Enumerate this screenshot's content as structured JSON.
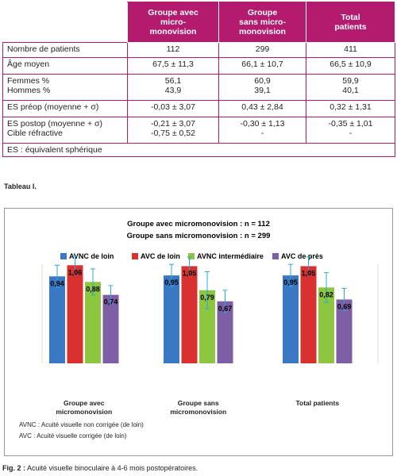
{
  "table": {
    "header": [
      "Groupe avec\nmicro-\nmonovision",
      "Groupe\nsans micro-\nmonovision",
      "Total\npatients"
    ],
    "rows": [
      [
        "Nombre de patients",
        "112",
        "299",
        "411"
      ],
      [
        "Âge moyen",
        "67,5 ± 11,3",
        "66,1 ± 10,7",
        "66,5 ± 10,9"
      ],
      [
        "Femmes %\nHommes %",
        "56,1\n43,9",
        "60,9\n39,1",
        "59,9\n40,1"
      ],
      [
        "ES préop (moyenne + σ)",
        "-0,03 ± 3,07",
        "0,43 ± 2,84",
        "0,32 ± 1,31"
      ],
      [
        "ES postop (moyenne + σ)\nCible réfractive",
        "-0,21 ± 3,07\n-0,75 ± 0,52",
        "-0,30 ± 1,13\n-",
        "-0,35 ± 1,01\n-"
      ]
    ],
    "footnote": "ES : équivalent sphérique",
    "caption": "Tableau I."
  },
  "chart_data": {
    "type": "bar",
    "title": "Groupe avec micromonovision : n = 112",
    "subtitle": "Groupe sans micromonovision : n = 299",
    "categories": [
      "Groupe avec micromonovision",
      "Groupe sans micromonovision",
      "Total patients"
    ],
    "ylim": [
      0,
      1.2
    ],
    "error_color": "#29a8e0",
    "series": [
      {
        "name": "AVNC de loin",
        "color": "#3a78c3",
        "values": [
          0.94,
          0.95,
          0.95
        ],
        "value_labels": [
          "0,94",
          "0,95",
          "0,95"
        ],
        "errors": [
          0.12,
          0.12,
          0.12
        ]
      },
      {
        "name": "AVC de loin",
        "color": "#d8312f",
        "values": [
          1.06,
          1.05,
          1.05
        ],
        "value_labels": [
          "1,06",
          "1,05",
          "1,05"
        ],
        "errors": [
          0.1,
          0.1,
          0.1
        ]
      },
      {
        "name": "AVNC intermédiaire",
        "color": "#8dc63f",
        "values": [
          0.88,
          0.79,
          0.82
        ],
        "value_labels": [
          "0,88",
          "0,79",
          "0,82"
        ],
        "errors": [
          0.14,
          0.2,
          0.16
        ]
      },
      {
        "name": "AVC de près",
        "color": "#7e5fa6",
        "values": [
          0.74,
          0.67,
          0.69
        ],
        "value_labels": [
          "0,74",
          "0,67",
          "0,69"
        ],
        "errors": [
          0.1,
          0.12,
          0.12
        ]
      }
    ],
    "notes": [
      "AVNC : Acuité visuelle non corrigée (de loin)",
      "AVC : Acuité visuelle corrigée (de loin)"
    ]
  },
  "figure_caption": {
    "label": "Fig. 2 :",
    "text": "Acuité visuelle binoculaire à 4-6 mois postopératoires."
  }
}
